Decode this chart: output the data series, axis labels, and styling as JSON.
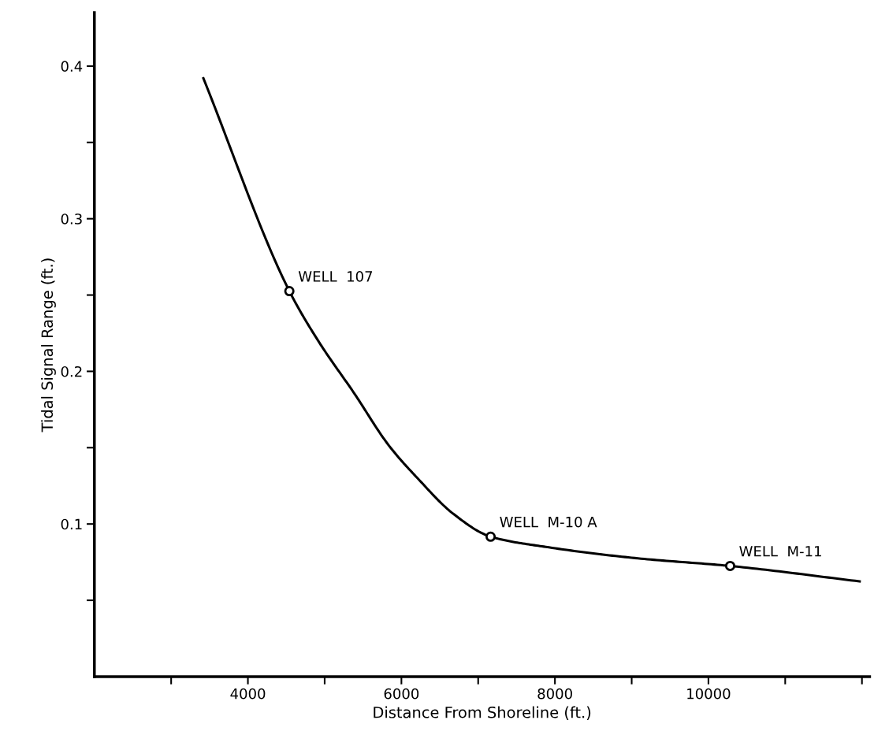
{
  "chart_data": {
    "type": "line",
    "xlabel": "Distance From Shoreline (ft.)",
    "ylabel": "Tidal Signal Range (ft.)",
    "xlim": [
      2000,
      12100
    ],
    "ylim": [
      0,
      0.435
    ],
    "xticks": [
      {
        "value": 3000,
        "label": null
      },
      4000,
      {
        "value": 5000,
        "label": null
      },
      6000,
      {
        "value": 7000,
        "label": null
      },
      8000,
      {
        "value": 9000,
        "label": null
      },
      10000,
      {
        "value": 11000,
        "label": null
      },
      {
        "value": 12000,
        "label": null
      }
    ],
    "yticks": [
      {
        "value": 0.05,
        "label": null
      },
      0.1,
      {
        "value": 0.15,
        "label": null
      },
      0.2,
      {
        "value": 0.25,
        "label": null
      },
      0.3,
      {
        "value": 0.35,
        "label": null
      },
      0.4
    ],
    "grid": false,
    "legend": false,
    "series": [
      {
        "color": "#000000",
        "marker": "none",
        "line_style": "solid",
        "x": [
          3420,
          4540,
          4916,
          5380,
          5843,
          6210,
          6680,
          7162,
          7880,
          9080,
          10283,
          11970
        ],
        "values": [
          0.392,
          0.2526,
          0.22,
          0.186,
          0.151,
          0.13,
          0.1065,
          0.0917,
          0.085,
          0.0775,
          0.0725,
          0.0624
        ]
      },
      {
        "type": "scatter",
        "color": "#000000",
        "marker": "circle",
        "x": [
          4540,
          7162,
          10283
        ],
        "values": [
          0.2526,
          0.0917,
          0.0725
        ]
      }
    ],
    "annotations": [
      {
        "text": "WELL  107",
        "x": 4540,
        "y": 0.2526
      },
      {
        "text": "WELL  M-10 A",
        "x": 7162,
        "y": 0.0917
      },
      {
        "text": "WELL  M-11",
        "x": 10283,
        "y": 0.0725
      }
    ]
  }
}
